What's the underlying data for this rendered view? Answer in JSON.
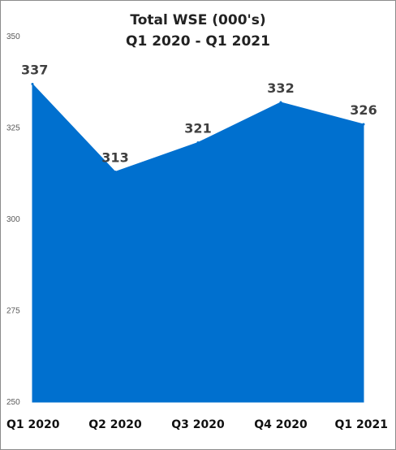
{
  "chart_data": {
    "type": "area",
    "title": "Total WSE (000's)",
    "subtitle": "Q1 2020 - Q1 2021",
    "categories": [
      "Q1 2020",
      "Q2 2020",
      "Q3 2020",
      "Q4 2020",
      "Q1 2021"
    ],
    "series": [
      {
        "values": [
          337,
          313,
          321,
          332,
          326
        ]
      }
    ],
    "data_labels": [
      "337",
      "313",
      "321",
      "332",
      "326"
    ],
    "ylim": [
      250,
      350
    ],
    "yticks": [
      250,
      275,
      300,
      325,
      350
    ],
    "ytick_labels": [
      "250",
      "275",
      "300",
      "325",
      "350"
    ],
    "grid": false,
    "legend": "none",
    "fill_color": "#0070CF"
  }
}
